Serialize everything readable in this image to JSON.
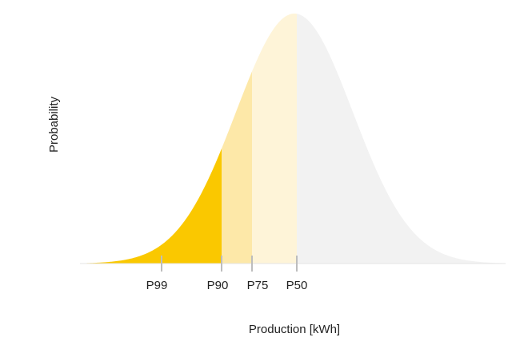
{
  "axis": {
    "y_label": "Probability",
    "x_label": "Production [kWh]"
  },
  "markers": [
    "P99",
    "P90",
    "P75",
    "P50"
  ]
}
